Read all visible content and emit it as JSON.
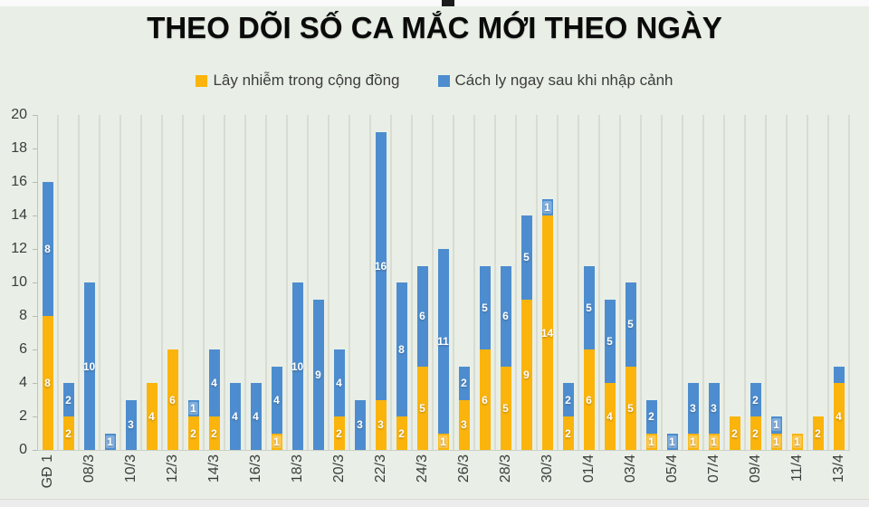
{
  "title": "THEO DÕI SỐ CA MẮC MỚI THEO NGÀY",
  "legend": {
    "items": [
      {
        "label": "Lây nhiễm trong cộng đồng",
        "color": "#FBB40C"
      },
      {
        "label": "Cách ly ngay sau khi nhập cảnh",
        "color": "#4D8DCF"
      }
    ]
  },
  "chart_data": {
    "type": "bar",
    "stacked": true,
    "title": "THEO DÕI SỐ CA MẮC MỚI THEO NGÀY",
    "xlabel": "",
    "ylabel": "",
    "ylim": [
      0,
      20
    ],
    "y_ticks": [
      0,
      2,
      4,
      6,
      8,
      10,
      12,
      14,
      16,
      18,
      20
    ],
    "grid": "vertical-only",
    "legend_position": "top",
    "value_labels": "inside-segments-white",
    "categories": [
      "GĐ 1",
      "",
      "08/3",
      "",
      "10/3",
      "",
      "12/3",
      "",
      "14/3",
      "",
      "16/3",
      "",
      "18/3",
      "",
      "20/3",
      "",
      "22/3",
      "",
      "24/3",
      "",
      "26/3",
      "",
      "28/3",
      "",
      "30/3",
      "",
      "01/4",
      "",
      "03/4",
      "",
      "05/4",
      "",
      "07/4",
      "",
      "09/4",
      "",
      "11/4",
      "",
      "13/4"
    ],
    "series": [
      {
        "name": "Lây nhiễm trong cộng đồng",
        "color": "#FBB40C",
        "values": [
          8,
          2,
          0,
          0,
          0,
          4,
          6,
          2,
          2,
          0,
          0,
          1,
          0,
          0,
          2,
          0,
          3,
          2,
          5,
          1,
          3,
          6,
          5,
          9,
          14,
          2,
          6,
          4,
          5,
          1,
          0,
          1,
          1,
          2,
          2,
          1,
          1,
          2,
          4
        ]
      },
      {
        "name": "Cách ly ngay sau khi nhập cảnh",
        "color": "#4D8DCF",
        "values": [
          8,
          2,
          10,
          1,
          3,
          0,
          0,
          1,
          4,
          4,
          4,
          4,
          10,
          9,
          4,
          3,
          16,
          8,
          6,
          11,
          2,
          5,
          6,
          5,
          1,
          2,
          5,
          5,
          5,
          2,
          1,
          3,
          3,
          0,
          2,
          1,
          0,
          0,
          1
        ]
      }
    ],
    "suppressed_value_labels": [
      {
        "bar_index": 38,
        "series_index": 1
      }
    ]
  },
  "colors": {
    "background": "#E9EFE6",
    "gridline": "#D8DCD3",
    "axis_line": "#C2C7BE",
    "tick_text": "#3C3C3C",
    "title_text": "#0A0A0A",
    "top_strip": "#FAFAFA",
    "bottom_strip": "#ECECEC"
  }
}
